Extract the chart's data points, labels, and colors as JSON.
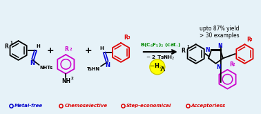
{
  "bg_color": "#e6f2f8",
  "footer_items": [
    {
      "text": "Metal-free",
      "color": "#0000cc"
    },
    {
      "text": "Chemoselective",
      "color": "#dd0000"
    },
    {
      "text": "Step-economical",
      "color": "#dd0000"
    },
    {
      "text": "Acceptorless",
      "color": "#dd0000"
    }
  ],
  "green_color": "#008800",
  "blue_color": "#0000dd",
  "red_color": "#dd0000",
  "purple_color": "#cc00cc",
  "yellow_color": "#ffff00",
  "black_color": "#000000"
}
